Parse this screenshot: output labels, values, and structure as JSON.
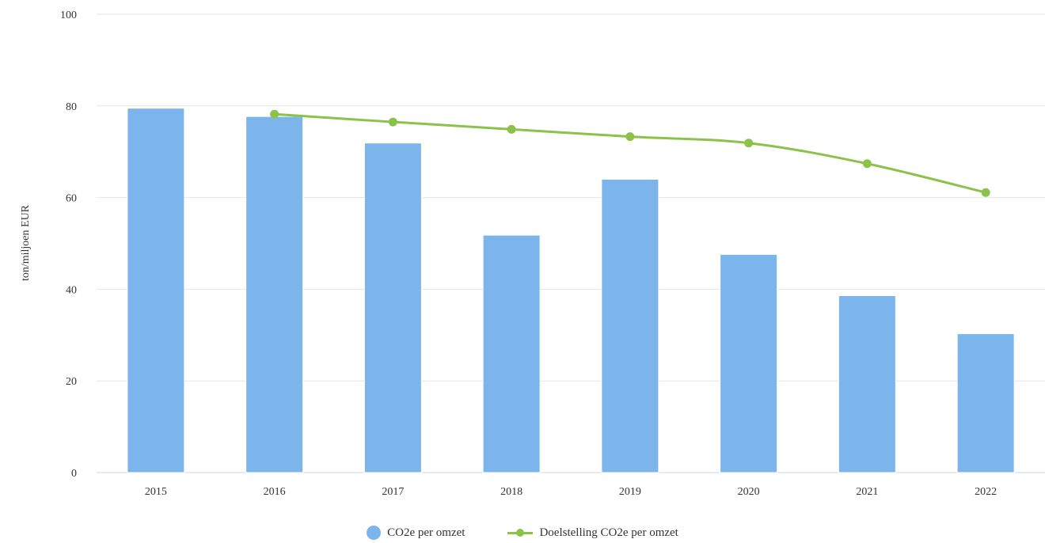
{
  "chart_data": {
    "type": "bar",
    "categories": [
      "2015",
      "2016",
      "2017",
      "2018",
      "2019",
      "2020",
      "2021",
      "2022"
    ],
    "series": [
      {
        "name": "CO2e per omzet",
        "kind": "bar",
        "color": "#7cb5ec",
        "values": [
          79.5,
          77.7,
          71.9,
          51.8,
          64.0,
          47.6,
          38.6,
          30.3
        ]
      },
      {
        "name": "Doelstelling CO2e per omzet",
        "kind": "line",
        "color": "#8bc34a",
        "values": [
          null,
          78.2,
          76.5,
          74.9,
          73.3,
          71.9,
          67.4,
          61.1
        ]
      }
    ],
    "ylabel": "ton/miljoen EUR",
    "xlabel": "",
    "ylim": [
      0,
      100
    ],
    "yticks": [
      0,
      20,
      40,
      60,
      80,
      100
    ],
    "grid": true,
    "legend_position": "bottom-center"
  }
}
